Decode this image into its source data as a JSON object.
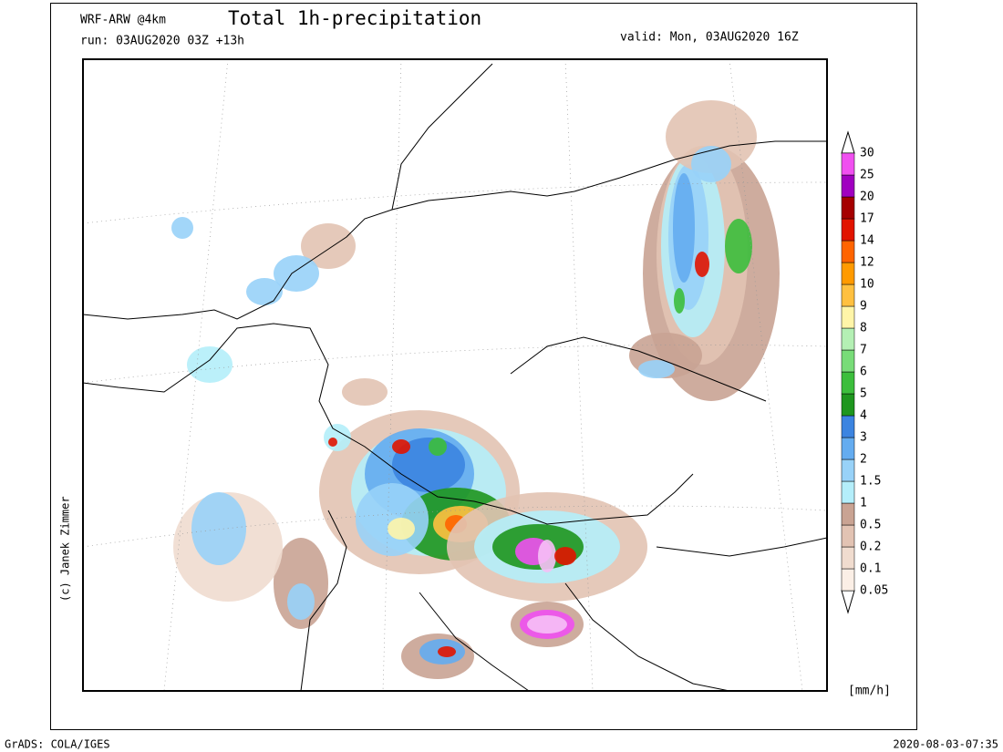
{
  "header": {
    "model": "WRF-ARW @4km",
    "run": "run: 03AUG2020 03Z +13h",
    "title": "Total 1h-precipitation",
    "valid": "valid: Mon, 03AUG2020 16Z"
  },
  "colorbar": {
    "levels": [
      0.05,
      0.1,
      0.2,
      0.5,
      1,
      1.5,
      2,
      3,
      4,
      5,
      6,
      7,
      8,
      9,
      10,
      12,
      14,
      17,
      20,
      25,
      30
    ],
    "colors": [
      "#fbefe6",
      "#f0dccf",
      "#e2c3b3",
      "#c9a393",
      "#b4eefa",
      "#98d2f8",
      "#64acf0",
      "#3c84e0",
      "#1e961e",
      "#3cbe3c",
      "#78dc78",
      "#b4f0b4",
      "#fff5a8",
      "#ffc040",
      "#ff9a00",
      "#ff6400",
      "#e11400",
      "#a50000",
      "#a000c0",
      "#f050f0",
      "#f6c0f6"
    ],
    "unit": "[mm/h]"
  },
  "credit": "(c) Janek Zimmer",
  "footer": {
    "left": "GrADS: COLA/IGES",
    "right": "2020-08-03-07:35"
  }
}
